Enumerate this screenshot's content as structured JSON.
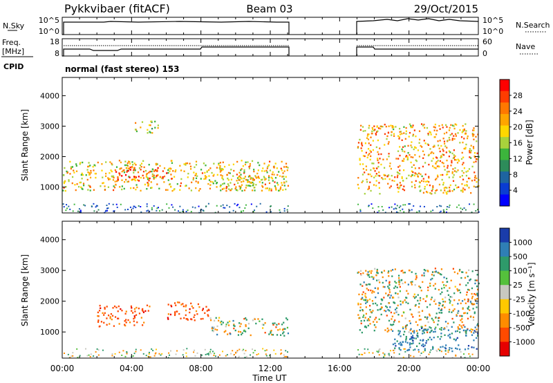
{
  "header": {
    "station": "Pykkvibaer (fitACF)",
    "beam": "Beam 03",
    "date": "29/Oct/2015"
  },
  "panels": {
    "nsky": {
      "label_left": "N.Sky",
      "label_right": "N.Search",
      "ticks_left": [
        "10^5",
        "10^0"
      ],
      "ticks_right": [
        "10^5",
        "10^0"
      ]
    },
    "freq": {
      "label_left_top": "Freq.",
      "label_left_bottom": "[MHz]",
      "label_right": "Nave",
      "ticks_left": [
        "18",
        "8"
      ],
      "ticks_right": [
        "60",
        "0"
      ]
    },
    "cpid": {
      "label": "CPID",
      "mode_text": "normal (fast stereo) 153"
    }
  },
  "colorbars": {
    "power": {
      "label": "Power [dB]",
      "ticks": [
        "28",
        "24",
        "20",
        "16",
        "12",
        "8",
        "4"
      ],
      "colors": [
        "#ff0000",
        "#ff3c00",
        "#ff7800",
        "#ffa500",
        "#ffd700",
        "#a8d23c",
        "#3cb43c",
        "#2d8c5a",
        "#1e64a0",
        "#0a3cd2",
        "#0000ff"
      ]
    },
    "velocity": {
      "label": "Velocity [m s⁻¹]",
      "ticks": [
        "1000",
        "500",
        "100",
        "25",
        "-25",
        "-100",
        "-500",
        "-1000"
      ],
      "colors": [
        "#1a3caa",
        "#2f7fb5",
        "#2e9a6a",
        "#55c03c",
        "#c8c8c0",
        "#ffc800",
        "#ff8c00",
        "#ff4a00",
        "#e60000"
      ]
    }
  },
  "xaxis": {
    "label": "Time UT",
    "ticks": [
      "00:00",
      "04:00",
      "08:00",
      "12:00",
      "16:00",
      "20:00",
      "00:00"
    ]
  },
  "chart_data": [
    {
      "type": "heatmap",
      "title": "Power",
      "ylabel": "Slant Range [km]",
      "xlabel": "",
      "x_unit": "hours UT",
      "xlim": [
        0,
        24
      ],
      "ylim": [
        150,
        4600
      ],
      "yticks": [
        1000,
        2000,
        3000,
        4000
      ],
      "colorbar_range_db": [
        0,
        32
      ],
      "data_gap_hours": [
        13,
        17
      ],
      "features": [
        {
          "hours": [
            0,
            13
          ],
          "range_km": [
            900,
            1900
          ],
          "power_db": 20
        },
        {
          "hours": [
            3,
            6
          ],
          "range_km": [
            1200,
            1700
          ],
          "power_db": 28
        },
        {
          "hours": [
            4,
            5.5
          ],
          "range_km": [
            2800,
            3200
          ],
          "power_db": 18
        },
        {
          "hours": [
            9,
            13
          ],
          "range_km": [
            900,
            1400
          ],
          "power_db": 20
        },
        {
          "hours": [
            17,
            24
          ],
          "range_km": [
            800,
            3100
          ],
          "power_db": 22
        }
      ]
    },
    {
      "type": "heatmap",
      "title": "Velocity",
      "ylabel": "Slant Range [km]",
      "xlabel": "Time UT",
      "x_unit": "hours UT",
      "xlim": [
        0,
        24
      ],
      "ylim": [
        150,
        4600
      ],
      "yticks": [
        1000,
        2000,
        3000,
        4000
      ],
      "data_gap_hours": [
        13,
        17
      ],
      "features": [
        {
          "hours": [
            2,
            5
          ],
          "range_km": [
            1200,
            1900
          ],
          "velocity_ms": -500
        },
        {
          "hours": [
            6,
            8.5
          ],
          "range_km": [
            1400,
            2000
          ],
          "velocity_ms": -500
        },
        {
          "hours": [
            8.5,
            13
          ],
          "range_km": [
            900,
            1500
          ],
          "velocity_ms": 0
        },
        {
          "hours": [
            17,
            24
          ],
          "range_km": [
            1000,
            3100
          ],
          "velocity_ms": 0
        },
        {
          "hours": [
            19,
            24
          ],
          "range_km": [
            400,
            1200
          ],
          "velocity_ms": 500
        }
      ]
    }
  ]
}
